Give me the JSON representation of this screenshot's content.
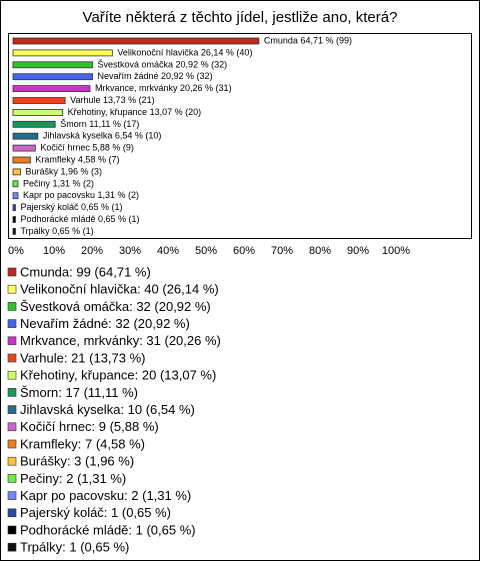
{
  "chart_data": {
    "type": "barh",
    "title": "Vaříte některá z těchto jídel, jestliže ano, která?",
    "categories": [
      "Cmunda",
      "Velikonoční hlavička",
      "Švestková omáčka",
      "Nevařím žádné",
      "Mrkvance, mrkvánky",
      "Varhule",
      "Křehotiny, křupance",
      "Šmorn",
      "Jihlavská kyselka",
      "Kočičí hrnec",
      "Kramfleky",
      "Burášky",
      "Pečiny",
      "Kapr po pacovsku",
      "Pajerský koláč",
      "Podhorácké mládě",
      "Trpálky"
    ],
    "values": [
      64.71,
      26.14,
      20.92,
      20.92,
      20.26,
      13.73,
      13.07,
      11.11,
      6.54,
      5.88,
      4.58,
      1.96,
      1.31,
      1.31,
      0.65,
      0.65,
      0.65
    ],
    "value_labels": [
      "64,71 % (99)",
      "26,14 % (40)",
      "20,92 % (32)",
      "20,92 % (32)",
      "20,26 % (31)",
      "13,73 % (21)",
      "13,07 % (20)",
      "11,11 % (17)",
      "6,54 % (10)",
      "5,88 % (9)",
      "4,58 % (7)",
      "1,96 % (3)",
      "1,31 % (2)",
      "1,31 % (2)",
      "0,65 % (1)",
      "0,65 % (1)",
      "0,65 % (1)"
    ],
    "legend_labels": [
      "Cmunda: 99 (64,71 %)",
      "Velikonoční hlavička: 40 (26,14 %)",
      "Švestková omáčka: 32 (20,92 %)",
      "Nevařím žádné: 32 (20,92 %)",
      "Mrkvance, mrkvánky: 31 (20,26 %)",
      "Varhule: 21 (13,73 %)",
      "Křehotiny, křupance: 20 (13,07 %)",
      "Šmorn: 17 (11,11 %)",
      "Jihlavská kyselka: 10 (6,54 %)",
      "Kočičí hrnec: 9 (5,88 %)",
      "Kramfleky: 7 (4,58 %)",
      "Burášky: 3 (1,96 %)",
      "Pečiny: 2 (1,31 %)",
      "Kapr po pacovsku: 2 (1,31 %)",
      "Pajerský koláč: 1 (0,65 %)",
      "Podhorácké mládě: 1 (0,65 %)",
      "Trpálky: 1 (0,65 %)"
    ],
    "colors": [
      "#c0281c",
      "#ffff55",
      "#2ec42e",
      "#4466ee",
      "#cc33cc",
      "#e8461a",
      "#ccff66",
      "#14995a",
      "#236e8a",
      "#cc66cc",
      "#ee7a22",
      "#ffc433",
      "#66ee44",
      "#7088ff",
      "#2848b0",
      "#000000",
      "#111111"
    ],
    "xlim": [
      0,
      100
    ],
    "xticks": [
      {
        "value": 0,
        "label": "0%"
      },
      {
        "value": 10,
        "label": "10%"
      },
      {
        "value": 20,
        "label": "20%"
      },
      {
        "value": 30,
        "label": "30%"
      },
      {
        "value": 40,
        "label": "40%"
      },
      {
        "value": 50,
        "label": "50%"
      },
      {
        "value": 60,
        "label": "60%"
      },
      {
        "value": 70,
        "label": "70%"
      },
      {
        "value": 80,
        "label": "80%"
      },
      {
        "value": 90,
        "label": "90%"
      },
      {
        "value": 100,
        "label": "100%"
      }
    ]
  }
}
